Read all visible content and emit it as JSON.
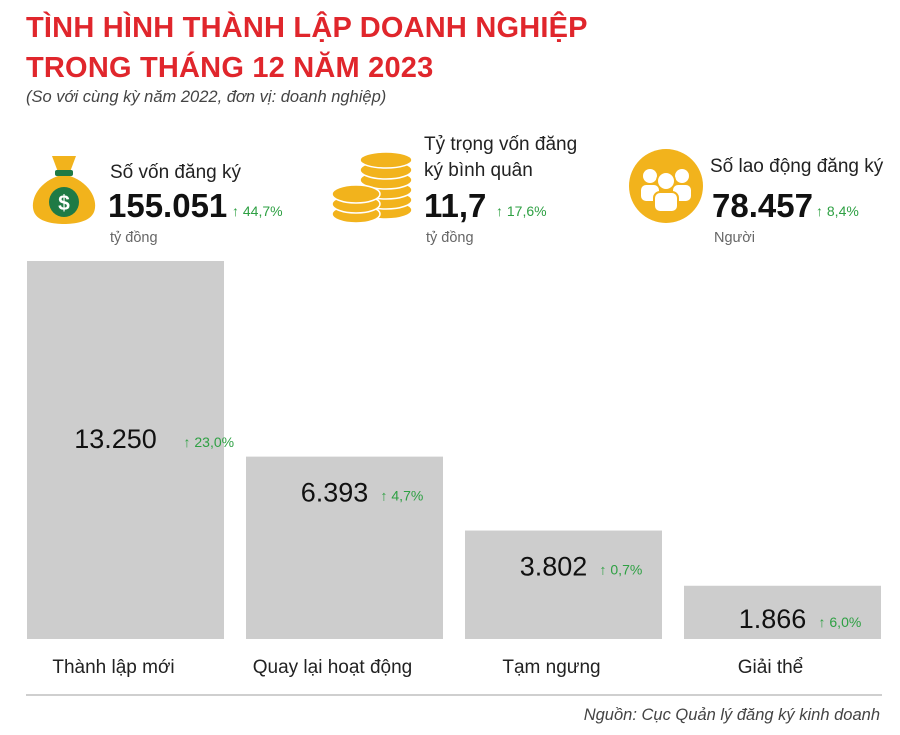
{
  "header": {
    "title_line1": "TÌNH HÌNH THÀNH LẬP DOANH NGHIỆP",
    "title_line2": "TRONG THÁNG 12 NĂM 2023",
    "subtitle": "(So với cùng kỳ năm 2022, đơn vị: doanh nghiệp)"
  },
  "stats": [
    {
      "label_line1": "Số vốn đăng ký",
      "label_line2": "",
      "value": "155.051",
      "change": "↑ 44,7%",
      "unit": "tỷ đồng",
      "icon": "money-bag-icon"
    },
    {
      "label_line1": "Tỷ trọng vốn đăng",
      "label_line2": "ký bình quân",
      "value": "11,7",
      "change": "↑ 17,6%",
      "unit": "tỷ đồng",
      "icon": "coins-stack-icon"
    },
    {
      "label_line1": "Số lao động đăng ký",
      "label_line2": "",
      "value": "78.457",
      "change": "↑ 8,4%",
      "unit": "Người",
      "icon": "people-group-icon"
    }
  ],
  "colors": {
    "title": "#e0262c",
    "bar": "#cdcdcd",
    "increase": "#2ea043",
    "icon_gold": "#f2b31c"
  },
  "chart_data": {
    "type": "bar",
    "categories": [
      "Thành lập mới",
      "Quay lại hoạt động",
      "Tạm ngưng",
      "Giải thể"
    ],
    "values": [
      13250,
      6393,
      3802,
      1866
    ],
    "value_labels": [
      "13.250",
      "6.393",
      "3.802",
      "1.866"
    ],
    "changes": [
      "↑ 23,0%",
      "↑ 4,7%",
      "↑ 0,7%",
      "↑ 6,0%"
    ],
    "ylim": [
      0,
      13250
    ],
    "grid": false,
    "title": "",
    "xlabel": "",
    "ylabel": ""
  },
  "footer": {
    "source": "Nguồn: Cục Quản lý đăng ký kinh doanh"
  }
}
